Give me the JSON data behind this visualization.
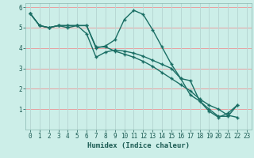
{
  "xlabel": "Humidex (Indice chaleur)",
  "xlim": [
    -0.5,
    23.5
  ],
  "ylim": [
    0,
    6.2
  ],
  "bg_color": "#cceee8",
  "grid_color_h": "#e8a0a0",
  "grid_color_v": "#b8d8d4",
  "line_color": "#1a6e64",
  "series": [
    {
      "x": [
        0,
        1,
        2,
        3,
        4,
        5,
        6,
        7,
        8,
        9,
        10,
        11,
        12,
        13,
        14,
        15,
        16,
        17,
        18,
        19,
        20,
        21,
        22
      ],
      "y": [
        5.7,
        5.1,
        5.0,
        5.1,
        5.1,
        5.1,
        5.1,
        4.0,
        4.1,
        4.4,
        5.4,
        5.85,
        5.65,
        4.9,
        4.05,
        3.2,
        2.5,
        1.7,
        1.4,
        0.9,
        0.6,
        0.8,
        1.2
      ]
    },
    {
      "x": [
        0,
        1,
        2,
        3,
        4,
        5,
        6,
        7,
        8,
        9,
        10,
        11,
        12,
        13,
        14,
        15,
        16,
        17,
        18,
        19,
        20,
        21,
        22
      ],
      "y": [
        5.7,
        5.1,
        5.0,
        5.1,
        5.1,
        5.1,
        4.7,
        3.55,
        3.8,
        3.9,
        3.85,
        3.75,
        3.6,
        3.4,
        3.2,
        3.0,
        2.5,
        2.4,
        1.4,
        1.0,
        0.65,
        0.65,
        1.2
      ]
    },
    {
      "x": [
        0,
        1,
        2,
        3,
        4,
        5,
        6,
        7,
        8,
        9,
        10,
        11,
        12,
        13,
        14,
        15,
        16,
        17,
        18,
        19,
        20,
        21,
        22
      ],
      "y": [
        5.7,
        5.1,
        5.0,
        5.1,
        5.0,
        5.1,
        5.1,
        4.05,
        4.05,
        3.85,
        3.7,
        3.55,
        3.35,
        3.1,
        2.8,
        2.5,
        2.2,
        1.9,
        1.5,
        1.2,
        1.0,
        0.7,
        0.6
      ]
    }
  ]
}
